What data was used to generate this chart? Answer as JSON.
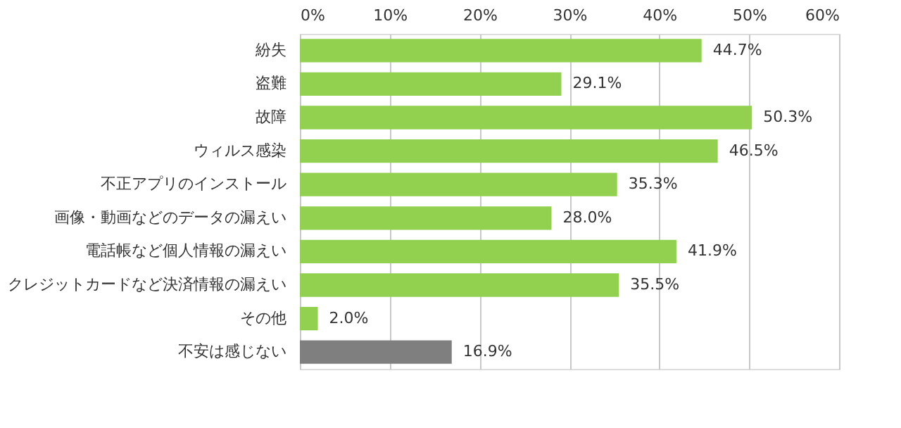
{
  "chart_data": {
    "type": "bar",
    "orientation": "horizontal",
    "categories": [
      "紛失",
      "盗難",
      "故障",
      "ウィルス感染",
      "不正アプリのインストール",
      "画像・動画などのデータの漏えい",
      "電話帳など個人情報の漏えい",
      "クレジットカードなど決済情報の漏えい",
      "その他",
      "不安は感じない"
    ],
    "values": [
      44.7,
      29.1,
      50.3,
      46.5,
      35.3,
      28.0,
      41.9,
      35.5,
      2.0,
      16.9
    ],
    "colors": [
      "#92d050",
      "#92d050",
      "#92d050",
      "#92d050",
      "#92d050",
      "#92d050",
      "#92d050",
      "#92d050",
      "#92d050",
      "#7f7f7f"
    ],
    "value_labels": [
      "44.7%",
      "29.1%",
      "50.3%",
      "46.5%",
      "35.3%",
      "28.0%",
      "41.9%",
      "35.5%",
      "2.0%",
      "16.9%"
    ],
    "xlim": [
      0,
      60
    ],
    "xticks": [
      {
        "value": 0,
        "label": "0%"
      },
      {
        "value": 10,
        "label": "10%"
      },
      {
        "value": 20,
        "label": "20%"
      },
      {
        "value": 30,
        "label": "30%"
      },
      {
        "value": 40,
        "label": "40%"
      },
      {
        "value": 50,
        "label": "50%"
      },
      {
        "value": 60,
        "label": "60%"
      }
    ],
    "grid": "x"
  }
}
